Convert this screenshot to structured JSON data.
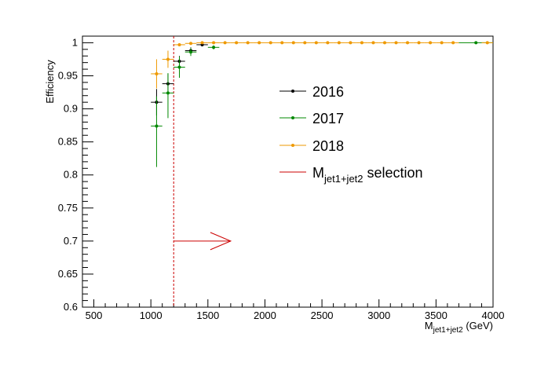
{
  "chart_data": {
    "type": "scatter",
    "title": "",
    "xlabel": {
      "main": "M",
      "sub": "jet1+jet2",
      "unit": " (GeV)"
    },
    "ylabel": "Efficiency",
    "xlim": [
      400,
      4000
    ],
    "ylim": [
      0.6,
      1.01
    ],
    "xticks": [
      500,
      1000,
      1500,
      2000,
      2500,
      3000,
      3500,
      4000
    ],
    "yticks": [
      0.6,
      0.65,
      0.7,
      0.75,
      0.8,
      0.85,
      0.9,
      0.95,
      1
    ],
    "xtick_labels": [
      "500",
      "1000",
      "1500",
      "2000",
      "2500",
      "3000",
      "3500",
      "4000"
    ],
    "ytick_labels": [
      "0.6",
      "0.65",
      "0.7",
      "0.75",
      "0.8",
      "0.85",
      "0.9",
      "0.95",
      "1"
    ],
    "grid": false,
    "legend_position": "right-center",
    "series": [
      {
        "name": "2016",
        "color": "#000000",
        "x": [
          1050,
          1150,
          1250,
          1350,
          1450
        ],
        "y": [
          0.91,
          0.938,
          0.972,
          0.988,
          0.997
        ],
        "yerr_low": [
          0.02,
          0.015,
          0.01,
          0.005,
          0.002
        ],
        "yerr_high": [
          0.02,
          0.015,
          0.008,
          0.005,
          0.002
        ],
        "xerr": [
          50,
          50,
          50,
          50,
          50
        ]
      },
      {
        "name": "2017",
        "color": "#008800",
        "x": [
          1050,
          1150,
          1250,
          1350,
          1550,
          3850
        ],
        "y": [
          0.874,
          0.924,
          0.963,
          0.986,
          0.993,
          1.0
        ],
        "yerr_low": [
          0.062,
          0.038,
          0.016,
          0.006,
          0.003,
          0.001
        ],
        "yerr_high": [
          0.045,
          0.03,
          0.016,
          0.006,
          0.003,
          0.001
        ],
        "xerr": [
          50,
          50,
          50,
          50,
          50,
          150
        ]
      },
      {
        "name": "2018",
        "color": "#ee9900",
        "x": [
          1050,
          1150,
          1250,
          1350,
          1450,
          1550,
          1650,
          1750,
          1850,
          1950,
          2050,
          2150,
          2250,
          2350,
          2450,
          2550,
          2650,
          2750,
          2850,
          2950,
          3050,
          3150,
          3250,
          3350,
          3450,
          3550,
          3650,
          3950
        ],
        "y": [
          0.953,
          0.975,
          0.997,
          0.999,
          1.0,
          1.0,
          1.0,
          1.0,
          1.0,
          1.0,
          1.0,
          1.0,
          1.0,
          1.0,
          1.0,
          1.0,
          1.0,
          1.0,
          1.0,
          1.0,
          1.0,
          1.0,
          1.0,
          1.0,
          1.0,
          1.0,
          1.0,
          1.0
        ],
        "yerr_low": [
          0.022,
          0.013,
          0.002,
          0.001,
          0,
          0,
          0,
          0,
          0,
          0,
          0,
          0,
          0,
          0,
          0,
          0,
          0,
          0,
          0,
          0,
          0,
          0,
          0,
          0,
          0,
          0,
          0,
          0
        ],
        "yerr_high": [
          0.022,
          0.013,
          0.002,
          0.001,
          0,
          0,
          0,
          0,
          0,
          0,
          0,
          0,
          0,
          0,
          0,
          0,
          0,
          0,
          0,
          0,
          0,
          0,
          0,
          0,
          0,
          0,
          0,
          0
        ],
        "xerr": [
          50,
          50,
          50,
          50,
          50,
          50,
          50,
          50,
          50,
          50,
          50,
          50,
          50,
          50,
          50,
          50,
          50,
          50,
          50,
          50,
          50,
          50,
          50,
          50,
          50,
          50,
          50,
          50
        ]
      }
    ],
    "selection": {
      "name": {
        "main": "M",
        "sub": "jet1+jet2",
        "tail": " selection"
      },
      "color": "#cc0000",
      "cut_x": 1200,
      "arrow_y": 0.7,
      "arrow_x_end": 1700
    }
  }
}
